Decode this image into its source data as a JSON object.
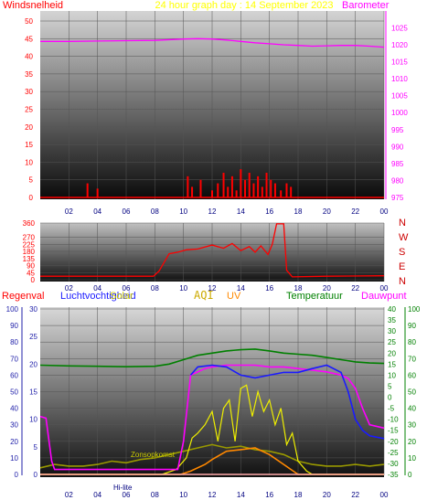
{
  "chart_data": [
    {
      "type": "line",
      "title": "24 hour graph day : 14 September 2023",
      "left_label": "Windsnelheid",
      "right_label": "Barometer",
      "x_ticks": [
        "02",
        "04",
        "06",
        "08",
        "10",
        "12",
        "14",
        "16",
        "18",
        "20",
        "22",
        "00"
      ],
      "y_left_ticks": [
        "0",
        "5",
        "10",
        "15",
        "20",
        "25",
        "30",
        "35",
        "40",
        "45",
        "50"
      ],
      "y_left_range": [
        0,
        50
      ],
      "y_right_ticks": [
        "975",
        "980",
        "985",
        "990",
        "995",
        "1000",
        "1005",
        "1010",
        "1015",
        "1020",
        "1025"
      ],
      "y_right_range": [
        975,
        1027
      ],
      "series": [
        {
          "name": "Barometer",
          "color": "#ff00ff",
          "axis": "right",
          "x": [
            0,
            2,
            4,
            6,
            8,
            10,
            11,
            12,
            13,
            14,
            15,
            16,
            17,
            18,
            19,
            20,
            21,
            22,
            23,
            24
          ],
          "y": [
            1021.0,
            1021.0,
            1021.1,
            1021.2,
            1021.3,
            1021.7,
            1021.8,
            1021.7,
            1021.4,
            1021.0,
            1020.6,
            1020.3,
            1020.0,
            1019.8,
            1019.6,
            1019.7,
            1019.8,
            1019.8,
            1019.6,
            1019.3
          ]
        },
        {
          "name": "Windsnelheid",
          "color": "#ff0000",
          "axis": "left",
          "type": "bar",
          "x": [
            3.3,
            4.0,
            10.3,
            10.6,
            11.2,
            12.0,
            12.4,
            12.8,
            13.1,
            13.4,
            13.7,
            14.0,
            14.3,
            14.6,
            14.9,
            15.2,
            15.5,
            15.8,
            16.1,
            16.4,
            16.8,
            17.2,
            17.5
          ],
          "y": [
            4,
            2.5,
            6,
            3,
            5,
            2,
            4,
            7,
            3,
            6,
            2,
            8,
            5,
            7,
            4,
            6,
            3,
            7,
            5,
            4,
            2,
            4,
            3
          ]
        }
      ]
    },
    {
      "type": "line",
      "x_ticks": [
        "02",
        "04",
        "06",
        "08",
        "10",
        "12",
        "14",
        "16",
        "18",
        "20",
        "22",
        "00"
      ],
      "y_ticks": [
        "0",
        "45",
        "90",
        "135",
        "180",
        "225",
        "270",
        "360"
      ],
      "y_range": [
        0,
        360
      ],
      "compass": [
        "N",
        "W",
        "S",
        "E",
        "N"
      ],
      "series": [
        {
          "name": "Windrichting",
          "color": "#ff0000",
          "x": [
            0,
            7.9,
            8.3,
            9.0,
            9.6,
            10.2,
            11.0,
            12.0,
            12.8,
            13.4,
            14.0,
            14.6,
            15.0,
            15.4,
            15.9,
            16.2,
            16.5,
            17.0,
            17.2,
            17.6,
            20,
            24
          ],
          "y": [
            22,
            22,
            55,
            165,
            175,
            190,
            195,
            220,
            200,
            230,
            185,
            210,
            175,
            215,
            160,
            225,
            355,
            355,
            60,
            18,
            22,
            25
          ]
        }
      ]
    },
    {
      "type": "line",
      "labels": [
        "Regenval",
        "Luchtvochtigheid",
        "Solar",
        "AQI",
        "UV",
        "Temperatuur",
        "Dauwpunt"
      ],
      "label_colors": [
        "#ff0000",
        "#1a1aff",
        "#cccc00",
        "#ccaa00",
        "#ff8800",
        "#008000",
        "#ff00ff"
      ],
      "annotations": [
        "Zonsopkomst",
        "Hi-lite"
      ],
      "x_ticks": [
        "02",
        "04",
        "06",
        "08",
        "10",
        "12",
        "14",
        "16",
        "18",
        "20",
        "22",
        "00"
      ],
      "y_left_rain_ticks": [
        "0",
        "10",
        "20",
        "30",
        "40",
        "50",
        "60",
        "70",
        "80",
        "90",
        "100"
      ],
      "y_left_hum_ticks": [
        "0",
        "5",
        "10",
        "15",
        "20",
        "25",
        "30"
      ],
      "y_right_temp_ticks": [
        "-35",
        "-30",
        "-25",
        "-20",
        "-15",
        "-10",
        "-5",
        "0",
        "5",
        "10",
        "15",
        "20",
        "25",
        "30",
        "35",
        "40"
      ],
      "y_right_far_ticks": [
        "0",
        "10",
        "20",
        "30",
        "40",
        "50",
        "60",
        "70",
        "80",
        "90",
        "100"
      ],
      "series": [
        {
          "name": "Temperatuur",
          "color": "#008000",
          "axis": "temp",
          "x": [
            0,
            2,
            4,
            6,
            8,
            9,
            10,
            11,
            12,
            13,
            14,
            15,
            16,
            17,
            18,
            19,
            20,
            21,
            22,
            23,
            24
          ],
          "y": [
            14.5,
            14.2,
            14.0,
            13.8,
            14.0,
            15.0,
            17.0,
            19.0,
            20.0,
            21.0,
            21.5,
            21.8,
            21.0,
            20.0,
            19.5,
            19.0,
            18.0,
            17.0,
            16.0,
            15.5,
            15.3
          ]
        },
        {
          "name": "Dauwpunt",
          "color": "#ff00ff",
          "axis": "rain",
          "x": [
            0,
            0.4,
            0.8,
            1.0,
            9.6,
            10.0,
            10.5,
            11.5,
            12,
            13,
            14,
            15,
            16,
            17,
            18,
            19,
            20,
            21,
            21.5,
            22,
            22.5,
            23,
            24
          ],
          "y": [
            35,
            34,
            8,
            3,
            3,
            20,
            60,
            64,
            65,
            66,
            66,
            66,
            65,
            65,
            64,
            63,
            62,
            60,
            58,
            52,
            40,
            30,
            28
          ]
        },
        {
          "name": "Luchtvochtigheid",
          "color": "#1a1aff",
          "axis": "hum",
          "x": [
            10.5,
            11,
            12,
            13,
            14,
            15,
            16,
            17,
            18,
            19,
            20,
            21,
            21.5,
            22,
            22.5,
            23,
            24
          ],
          "y": [
            18,
            19.5,
            19.8,
            19.5,
            18,
            17.5,
            18,
            18.5,
            18.5,
            19.2,
            19.8,
            18.5,
            15,
            10,
            8,
            7,
            6.5
          ]
        },
        {
          "name": "Solar",
          "color": "#eeee00",
          "axis": "rain",
          "x": [
            0,
            8.5,
            9.5,
            10.2,
            10.6,
            11,
            11.5,
            12,
            12.4,
            12.8,
            13.2,
            13.6,
            14,
            14.4,
            14.8,
            15.2,
            15.6,
            16.0,
            16.4,
            16.8,
            17.2,
            17.6,
            18.0,
            18.6,
            19,
            24
          ],
          "y": [
            0,
            0,
            3,
            10,
            22,
            25,
            30,
            38,
            20,
            40,
            45,
            20,
            52,
            54,
            35,
            50,
            38,
            45,
            30,
            40,
            18,
            25,
            8,
            2,
            0,
            0
          ]
        },
        {
          "name": "UV",
          "color": "#ff8800",
          "axis": "rain",
          "x": [
            0,
            9.8,
            10.5,
            11.5,
            12,
            13,
            14,
            15,
            16,
            17,
            17.5,
            18,
            24
          ],
          "y": [
            0,
            0,
            2,
            6,
            9,
            14,
            15,
            16,
            12,
            6,
            3,
            0,
            0
          ]
        },
        {
          "name": "AQI",
          "color": "#999900",
          "axis": "rain",
          "x": [
            0,
            1,
            2,
            3,
            4,
            5,
            6,
            7,
            8,
            9,
            10,
            11,
            12,
            13,
            14,
            15,
            16,
            17,
            18,
            19,
            20,
            21,
            22,
            23,
            24
          ],
          "y": [
            4,
            6,
            5,
            5,
            6,
            8,
            7,
            9,
            10,
            12,
            14,
            16,
            18,
            16,
            17,
            15,
            14,
            12,
            8,
            6,
            5,
            5,
            6,
            5,
            6
          ]
        },
        {
          "name": "Regenval",
          "color": "#ff0000",
          "axis": "rain",
          "x": [
            0,
            24
          ],
          "y": [
            0,
            0
          ]
        }
      ]
    }
  ]
}
